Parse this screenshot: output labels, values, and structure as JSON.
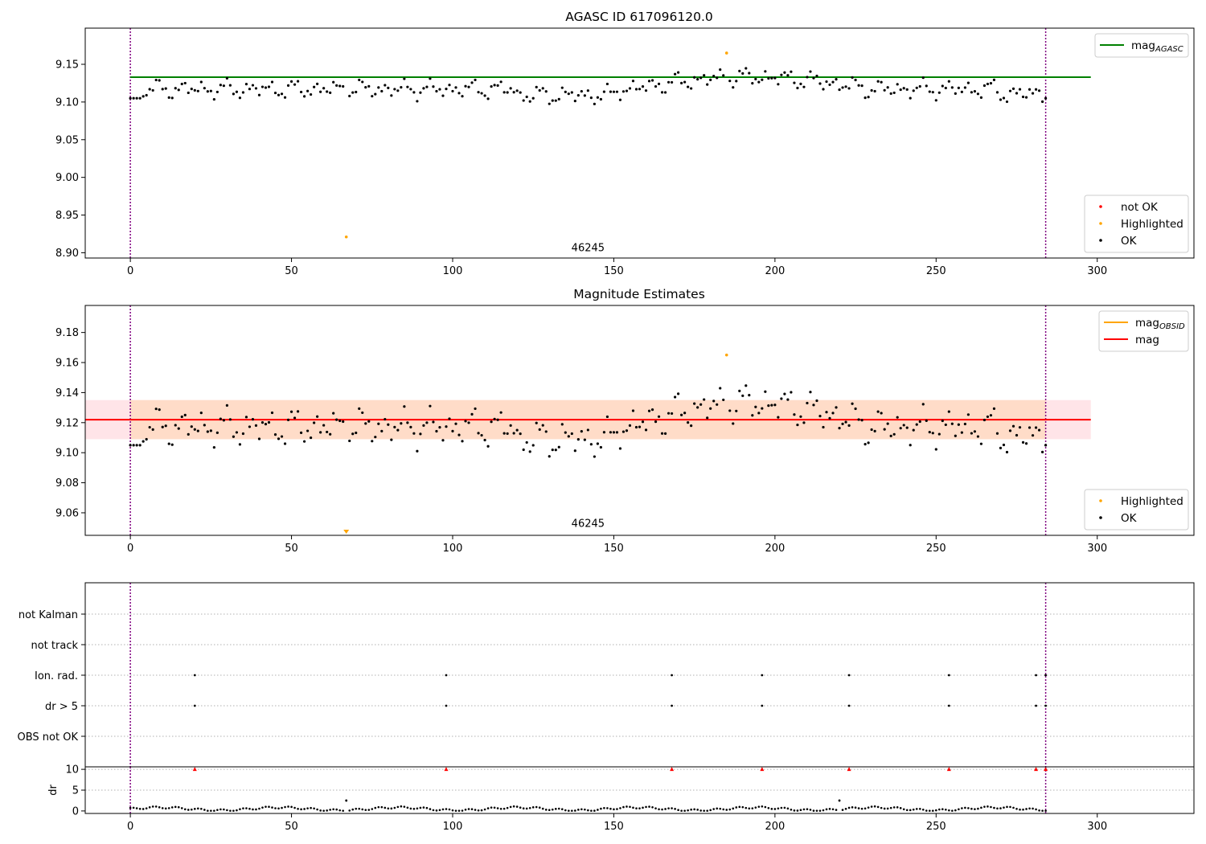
{
  "colors": {
    "ok": "#000000",
    "not_ok": "#ff0000",
    "highlighted": "#ffa500",
    "agasc_line": "#008000",
    "mag_line": "#ff0000",
    "obsid_line": "#ffa500",
    "band_outer": "#ffe4e8",
    "band_inner": "#ffdcc8",
    "vline": "#800080",
    "grid": "#b0b0b0"
  },
  "chart_data": [
    {
      "type": "scatter",
      "title": "AGASC ID 617096120.0",
      "xlim": [
        -14,
        330
      ],
      "ylim": [
        8.893,
        9.198
      ],
      "xticks": [
        0,
        50,
        100,
        150,
        200,
        250,
        300
      ],
      "yticks": [
        8.9,
        8.95,
        9.0,
        9.05,
        9.1,
        9.15
      ],
      "ytick_labels": [
        "8.90",
        "8.95",
        "9.00",
        "9.05",
        "9.10",
        "9.15"
      ],
      "vlines": [
        0,
        284
      ],
      "hline": {
        "name": "mag_AGASC",
        "y": 9.133,
        "x0": 0,
        "x1": 298
      },
      "annotation": {
        "text": "46245",
        "x": 142,
        "y": 8.9
      },
      "legends": [
        {
          "placement": "top-right",
          "entries": [
            {
              "kind": "line",
              "label": "mag",
              "sub": "AGASC",
              "color": "#008000"
            }
          ]
        },
        {
          "placement": "bottom-right",
          "entries": [
            {
              "kind": "marker",
              "label": "not OK",
              "color": "#ff0000"
            },
            {
              "kind": "marker",
              "label": "Highlighted",
              "color": "#ffa500"
            },
            {
              "kind": "marker",
              "label": "OK",
              "color": "#000000"
            }
          ]
        }
      ],
      "series": [
        {
          "name": "Highlighted",
          "points": [
            [
              67,
              8.921
            ],
            [
              185,
              9.165
            ]
          ]
        }
      ]
    },
    {
      "type": "scatter",
      "title": "Magnitude Estimates",
      "xlim": [
        -14,
        330
      ],
      "ylim": [
        9.045,
        9.198
      ],
      "xticks": [
        0,
        50,
        100,
        150,
        200,
        250,
        300
      ],
      "yticks": [
        9.06,
        9.08,
        9.1,
        9.12,
        9.14,
        9.16,
        9.18
      ],
      "ytick_labels": [
        "9.06",
        "9.08",
        "9.10",
        "9.12",
        "9.14",
        "9.16",
        "9.18"
      ],
      "vlines": [
        0,
        284
      ],
      "mag_line": {
        "name": "mag",
        "y": 9.122,
        "x0": -14,
        "x1": 298
      },
      "bands": [
        {
          "y0": 9.109,
          "y1": 9.135,
          "x0": -14,
          "x1": 298,
          "color": "#ffe4e8"
        },
        {
          "y0": 9.109,
          "y1": 9.135,
          "x0": 0,
          "x1": 284,
          "color": "#ffdcc8"
        }
      ],
      "annotation": {
        "text": "46245",
        "x": 142,
        "y": 9.048
      },
      "legends": [
        {
          "placement": "top-right",
          "entries": [
            {
              "kind": "line",
              "label": "mag",
              "sub": "OBSID",
              "color": "#ffa500"
            },
            {
              "kind": "line",
              "label": "mag",
              "sub": "",
              "color": "#ff0000"
            }
          ]
        },
        {
          "placement": "bottom-right",
          "entries": [
            {
              "kind": "marker",
              "label": "Highlighted",
              "color": "#ffa500"
            },
            {
              "kind": "marker",
              "label": "OK",
              "color": "#000000"
            }
          ]
        }
      ],
      "series": [
        {
          "name": "Highlighted",
          "points": [
            [
              185,
              9.165
            ]
          ]
        },
        {
          "name": "Highlighted (below axis)",
          "points": [
            [
              67,
              9.047
            ]
          ]
        }
      ]
    },
    {
      "type": "scatter",
      "title": "",
      "xlim": [
        -14,
        330
      ],
      "categories": [
        "not Kalman",
        "not track",
        "Ion. rad.",
        "dr > 5",
        "OBS not OK"
      ],
      "xticks": [
        0,
        50,
        100,
        150,
        200,
        250,
        300
      ],
      "vlines": [
        0,
        284
      ],
      "flag_rows": [
        {
          "flag": "Ion. rad.",
          "x": [
            20,
            98,
            168,
            196,
            223,
            254,
            281,
            284
          ]
        },
        {
          "flag": "dr > 5",
          "x": [
            20,
            98,
            168,
            196,
            223,
            254,
            281,
            284
          ]
        }
      ]
    },
    {
      "type": "scatter",
      "title": "",
      "ylabel": "dr",
      "xlim": [
        -14,
        330
      ],
      "ylim": [
        -0.6,
        10.6
      ],
      "yticks": [
        0,
        5,
        10
      ],
      "xticks": [
        0,
        50,
        100,
        150,
        200,
        250,
        300
      ],
      "vlines": [
        0,
        284
      ],
      "clipped_markers": {
        "y": 10,
        "x": [
          20,
          98,
          168,
          196,
          223,
          254,
          281,
          284
        ]
      },
      "outliers": [
        [
          67,
          2.5
        ],
        [
          220,
          2.5
        ]
      ]
    }
  ]
}
